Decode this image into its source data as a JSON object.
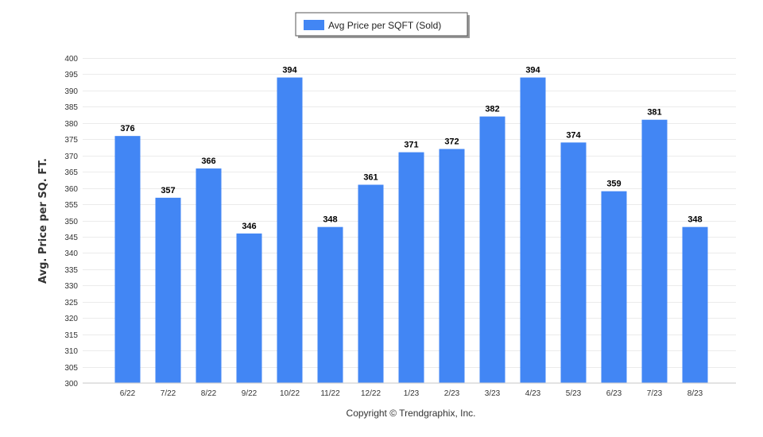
{
  "chart_data": {
    "type": "bar",
    "categories": [
      "6/22",
      "7/22",
      "8/22",
      "9/22",
      "10/22",
      "11/22",
      "12/22",
      "1/23",
      "2/23",
      "3/23",
      "4/23",
      "5/23",
      "6/23",
      "7/23",
      "8/23"
    ],
    "series": [
      {
        "name": "Avg Price per SQFT (Sold)",
        "values": [
          376,
          357,
          366,
          346,
          394,
          348,
          361,
          371,
          372,
          382,
          394,
          374,
          359,
          381,
          348
        ],
        "color": "#4286f4"
      }
    ],
    "ylabel": "Avg. Price per SQ. FT.",
    "ylim": [
      300,
      400
    ],
    "ytick_step": 5,
    "grid": true,
    "legend": "top-center"
  },
  "footer": {
    "copyright": "Copyright © Trendgraphix, Inc."
  }
}
